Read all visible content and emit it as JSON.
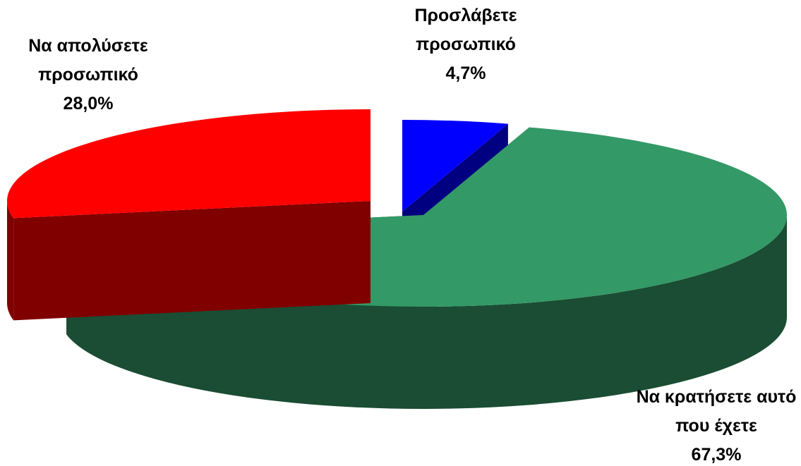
{
  "chart_data": {
    "type": "pie3d",
    "categories": [
      "Προσλάβετε προσωπικό",
      "Να κρατήσετε αυτό που έχετε",
      "Να απολύσετε προσωπικό"
    ],
    "values": [
      4.7,
      67.3,
      28.0
    ],
    "value_labels": [
      "4,7%",
      "67,3%",
      "28,0%"
    ],
    "colors": [
      "#0000ff",
      "#339966",
      "#ff0000"
    ]
  }
}
